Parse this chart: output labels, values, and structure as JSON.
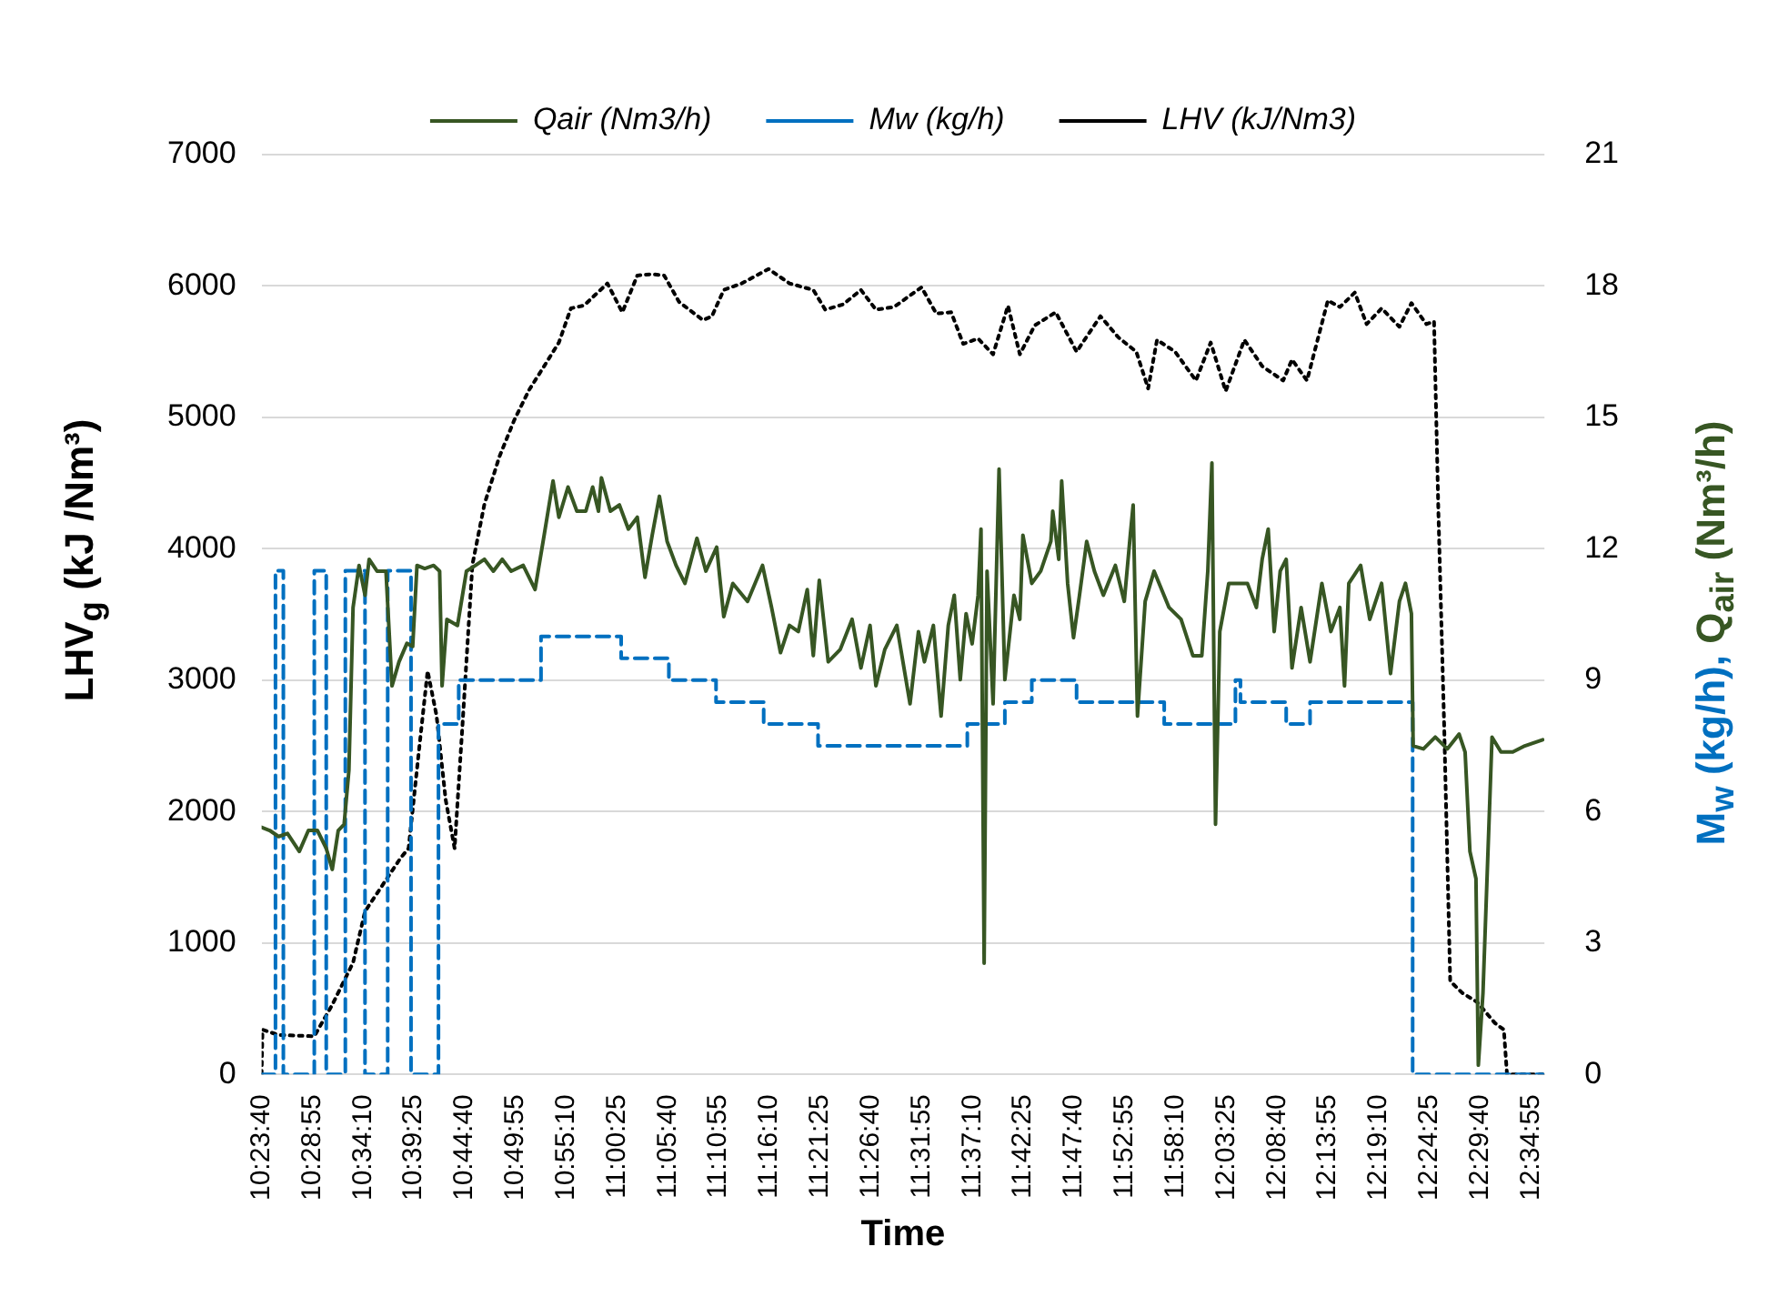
{
  "chart_data": {
    "type": "line",
    "xlabel": "Time",
    "ylabel": "LHV$_{g}$ (kJ /Nm³)",
    "y2label": "M$_{w}$ (kg/h), Q$_{air}$ (Nm³/h)",
    "grid": "y",
    "legend": "top",
    "marker": "none",
    "xlim": [
      10.3944,
      12.605
    ],
    "xticks": [
      {
        "value": 10.3944,
        "label": "10:23:40"
      },
      {
        "value": 10.4819,
        "label": "10:28:55"
      },
      {
        "value": 10.5694,
        "label": "10:34:10"
      },
      {
        "value": 10.6569,
        "label": "10:39:25"
      },
      {
        "value": 10.7444,
        "label": "10:44:40"
      },
      {
        "value": 10.8319,
        "label": "10:49:55"
      },
      {
        "value": 10.9194,
        "label": "10:55:10"
      },
      {
        "value": 11.0069,
        "label": "11:00:25"
      },
      {
        "value": 11.0944,
        "label": "11:05:40"
      },
      {
        "value": 11.1819,
        "label": "11:10:55"
      },
      {
        "value": 11.2694,
        "label": "11:16:10"
      },
      {
        "value": 11.3569,
        "label": "11:21:25"
      },
      {
        "value": 11.4444,
        "label": "11:26:40"
      },
      {
        "value": 11.5319,
        "label": "11:31:55"
      },
      {
        "value": 11.6194,
        "label": "11:37:10"
      },
      {
        "value": 11.7069,
        "label": "11:42:25"
      },
      {
        "value": 11.7944,
        "label": "11:47:40"
      },
      {
        "value": 11.8819,
        "label": "11:52:55"
      },
      {
        "value": 11.9694,
        "label": "11:58:10"
      },
      {
        "value": 12.0569,
        "label": "12:03:25"
      },
      {
        "value": 12.1444,
        "label": "12:08:40"
      },
      {
        "value": 12.2319,
        "label": "12:13:55"
      },
      {
        "value": 12.3194,
        "label": "12:19:10"
      },
      {
        "value": 12.4069,
        "label": "12:24:25"
      },
      {
        "value": 12.4944,
        "label": "12:29:40"
      },
      {
        "value": 12.5819,
        "label": "12:34:55"
      }
    ],
    "ylim": [
      0,
      7000
    ],
    "yticks": [
      0,
      1000,
      2000,
      3000,
      4000,
      5000,
      6000,
      7000
    ],
    "y2lim": [
      0,
      21
    ],
    "y2ticks": [
      0,
      3,
      6,
      9,
      12,
      15,
      18,
      21
    ],
    "series": [
      {
        "name": "Qair (Nm3/h)",
        "type": "line",
        "axis": "y2",
        "line_style": "solid",
        "color": "#375623",
        "x": [
          10.3944,
          10.4083,
          10.4237,
          10.439,
          10.4594,
          10.4751,
          10.4905,
          10.5058,
          10.5162,
          10.5265,
          10.5366,
          10.5449,
          10.552,
          10.5623,
          10.5726,
          10.5797,
          10.5933,
          10.6087,
          10.6191,
          10.6312,
          10.6448,
          10.6548,
          10.6622,
          10.6755,
          10.6909,
          10.7012,
          10.7054,
          10.7137,
          10.732,
          10.7474,
          10.763,
          10.7784,
          10.7938,
          10.8091,
          10.8245,
          10.8452,
          10.8656,
          10.8813,
          10.8966,
          10.9067,
          10.9224,
          10.9377,
          10.9531,
          10.9649,
          10.9749,
          10.98,
          10.9954,
          11.011,
          11.0264,
          11.0418,
          11.0551,
          11.0675,
          11.0799,
          11.0932,
          11.1086,
          11.1239,
          11.1446,
          11.16,
          11.1786,
          11.1908,
          11.2064,
          11.2318,
          11.2576,
          11.2732,
          11.2886,
          11.304,
          11.3193,
          11.3347,
          11.3451,
          11.3554,
          11.3708,
          11.3915,
          11.4119,
          11.4272,
          11.4429,
          11.453,
          11.4683,
          11.489,
          11.5118,
          11.5263,
          11.5366,
          11.552,
          11.5653,
          11.5777,
          11.588,
          11.5984,
          11.6084,
          11.6188,
          11.6291,
          11.6341,
          11.6395,
          11.6445,
          11.6549,
          11.6652,
          11.6752,
          11.6909,
          11.701,
          11.7063,
          11.7216,
          11.737,
          11.7545,
          11.7577,
          11.7681,
          11.7731,
          11.7834,
          11.7935,
          11.8038,
          11.8162,
          11.8295,
          11.8449,
          11.8656,
          11.881,
          11.8913,
          11.8963,
          11.9037,
          11.917,
          11.9324,
          11.9581,
          11.9788,
          11.9992,
          12.0146,
          12.0249,
          12.032,
          12.0382,
          12.0456,
          12.061,
          12.0764,
          12.0932,
          12.1086,
          12.1186,
          12.129,
          12.1393,
          12.1497,
          12.16,
          12.17,
          12.1857,
          12.2011,
          12.2215,
          12.2369,
          12.2525,
          12.2605,
          12.2679,
          12.2883,
          12.304,
          12.3244,
          12.3398,
          12.3551,
          12.3655,
          12.3758,
          12.3788,
          12.3965,
          12.4169,
          12.4376,
          12.458,
          12.4683,
          12.4766,
          12.487,
          12.4911,
          12.4991,
          12.5147,
          12.5301,
          12.5505,
          12.5712,
          12.602
        ],
        "values": [
          5.64,
          5.57,
          5.43,
          5.5,
          5.09,
          5.57,
          5.57,
          5.16,
          4.68,
          5.57,
          5.71,
          6.95,
          10.66,
          11.62,
          10.94,
          11.76,
          11.49,
          11.49,
          8.87,
          9.42,
          9.84,
          9.77,
          11.62,
          11.55,
          11.62,
          11.49,
          8.87,
          10.39,
          10.25,
          11.49,
          11.62,
          11.76,
          11.49,
          11.76,
          11.49,
          11.62,
          11.07,
          12.31,
          13.55,
          12.72,
          13.41,
          12.86,
          12.86,
          13.41,
          12.86,
          13.62,
          12.86,
          13.0,
          12.45,
          12.72,
          11.35,
          12.31,
          13.2,
          12.17,
          11.62,
          11.21,
          12.24,
          11.49,
          12.04,
          10.45,
          11.21,
          10.8,
          11.62,
          10.66,
          9.63,
          10.25,
          10.11,
          11.07,
          9.56,
          11.28,
          9.42,
          9.7,
          10.39,
          9.28,
          10.25,
          8.87,
          9.7,
          10.25,
          8.46,
          10.11,
          9.42,
          10.25,
          8.18,
          10.25,
          10.94,
          9.01,
          10.52,
          9.83,
          10.94,
          12.45,
          2.54,
          11.49,
          8.46,
          13.82,
          9.01,
          10.94,
          10.39,
          12.31,
          11.21,
          11.49,
          12.17,
          12.86,
          11.76,
          13.55,
          11.21,
          9.97,
          10.94,
          12.17,
          11.49,
          10.94,
          11.62,
          10.8,
          12.31,
          13.0,
          8.18,
          10.8,
          11.49,
          10.66,
          10.39,
          9.56,
          9.56,
          11.49,
          13.96,
          5.71,
          10.11,
          11.21,
          11.21,
          11.21,
          10.66,
          11.76,
          12.45,
          10.11,
          11.49,
          11.76,
          9.28,
          10.66,
          9.42,
          11.21,
          10.11,
          10.66,
          8.87,
          11.21,
          11.62,
          10.39,
          11.21,
          9.15,
          10.8,
          11.21,
          10.52,
          7.5,
          7.43,
          7.7,
          7.43,
          7.77,
          7.36,
          5.09,
          4.47,
          0.21,
          1.86,
          7.7,
          7.36,
          7.36,
          7.5,
          7.64
        ]
      },
      {
        "name": "Mw (kg/h)",
        "type": "step",
        "axis": "y2",
        "line_style": "dashed",
        "color": "#0070c0",
        "x": [
          10.3944,
          10.4183,
          10.4319,
          10.4852,
          10.5058,
          10.5387,
          10.5726,
          10.6117,
          10.6519,
          10.6992,
          10.7341,
          10.8759,
          11.014,
          11.0962,
          11.1775,
          11.2596,
          11.3533,
          11.6105,
          11.6752,
          11.7216,
          11.7988,
          11.9498,
          12.0725,
          12.0812,
          12.16,
          12.2011,
          12.3779,
          12.602
        ],
        "values": [
          0,
          11.5,
          0,
          11.5,
          0,
          11.5,
          0,
          11.5,
          0,
          8,
          9,
          10,
          9.5,
          9,
          8.5,
          8,
          7.5,
          8,
          8.5,
          9,
          8.5,
          8,
          9,
          8.5,
          8,
          8.5,
          0,
          0
        ]
      },
      {
        "name": "LHV (kJ/Nm3)",
        "type": "line",
        "axis": "y",
        "line_style": "dotted",
        "color": "#000000",
        "x": [
          10.3944,
          10.396,
          10.4237,
          10.4852,
          10.5162,
          10.552,
          10.5726,
          10.6344,
          10.6477,
          10.6652,
          10.6805,
          10.6959,
          10.7116,
          10.727,
          10.7403,
          10.7577,
          10.7784,
          10.8041,
          10.8298,
          10.8555,
          10.8813,
          10.9067,
          10.9274,
          10.9481,
          10.9543,
          10.9903,
          11.016,
          11.0418,
          11.0675,
          11.0882,
          11.1136,
          11.155,
          11.1704,
          11.1908,
          11.2218,
          11.2679,
          11.304,
          11.3451,
          11.3657,
          11.3965,
          11.4272,
          11.453,
          11.484,
          11.5316,
          11.557,
          11.5827,
          11.6034,
          11.6291,
          11.6549,
          11.6806,
          11.701,
          11.7267,
          11.7628,
          11.7988,
          11.8399,
          11.8706,
          11.9017,
          11.9221,
          11.9374,
          11.9685,
          12.0045,
          12.0299,
          12.0557,
          12.0879,
          12.1186,
          12.1547,
          12.17,
          12.1958,
          12.2318,
          12.2525,
          12.2782,
          12.2986,
          12.3244,
          12.3551,
          12.3758,
          12.4015,
          12.4148,
          12.4222,
          12.4323,
          12.4426,
          12.4633,
          12.489,
          12.5198,
          12.5351,
          12.5405,
          12.602
        ],
        "values": [
          0,
          340,
          300,
          290,
          530,
          850,
          1240,
          1650,
          1720,
          2450,
          3070,
          2730,
          2090,
          1720,
          2640,
          3880,
          4340,
          4700,
          4980,
          5210,
          5390,
          5570,
          5830,
          5850,
          5870,
          6020,
          5800,
          6080,
          6090,
          6080,
          5880,
          5740,
          5770,
          5970,
          6020,
          6130,
          6020,
          5970,
          5820,
          5860,
          5970,
          5820,
          5840,
          5990,
          5790,
          5800,
          5560,
          5600,
          5480,
          5850,
          5480,
          5700,
          5800,
          5500,
          5770,
          5610,
          5500,
          5220,
          5590,
          5500,
          5280,
          5570,
          5200,
          5590,
          5390,
          5280,
          5440,
          5280,
          5890,
          5840,
          5950,
          5710,
          5830,
          5690,
          5870,
          5710,
          5730,
          4290,
          2640,
          710,
          620,
          550,
          390,
          340,
          0,
          0
        ]
      }
    ]
  }
}
